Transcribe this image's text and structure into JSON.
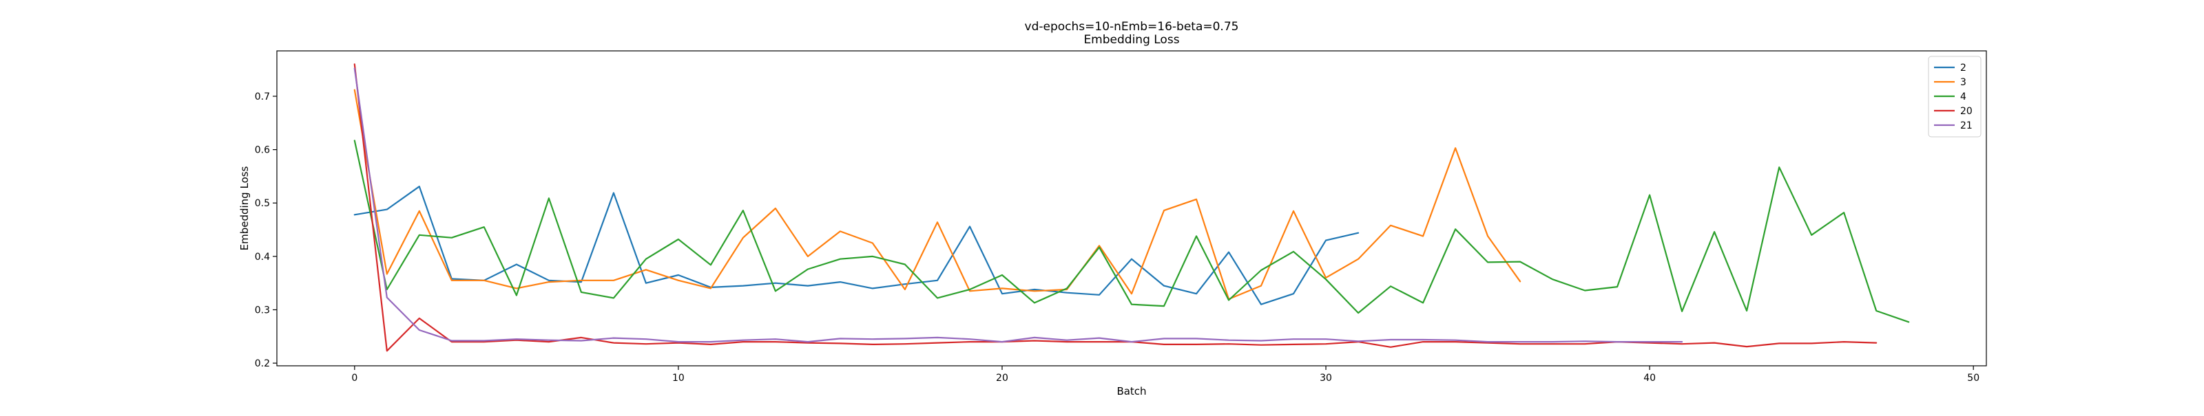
{
  "chart_data": {
    "type": "line",
    "title": "vd-epochs=10-nEmb=16-beta=0.75",
    "subtitle": "Embedding Loss",
    "xlabel": "Batch",
    "ylabel": "Embedding Loss",
    "xlim": [
      -2.4,
      50.4
    ],
    "ylim": [
      0.195,
      0.785
    ],
    "x_ticks": [
      0,
      10,
      20,
      30,
      40,
      50
    ],
    "y_ticks": [
      0.2,
      0.3,
      0.4,
      0.5,
      0.6,
      0.7
    ],
    "grid": false,
    "legend_position": "top-right",
    "series": [
      {
        "name": "2",
        "color": "#1f77b4",
        "values": [
          0.478,
          0.488,
          0.531,
          0.358,
          0.355,
          0.385,
          0.355,
          0.352,
          0.519,
          0.35,
          0.365,
          0.342,
          0.345,
          0.35,
          0.345,
          0.352,
          0.34,
          0.348,
          0.355,
          0.456,
          0.33,
          0.338,
          0.332,
          0.328,
          0.395,
          0.345,
          0.33,
          0.408,
          0.31,
          0.33,
          0.43,
          0.444
        ]
      },
      {
        "name": "3",
        "color": "#ff7f0e",
        "values": [
          0.712,
          0.367,
          0.485,
          0.355,
          0.355,
          0.34,
          0.352,
          0.355,
          0.355,
          0.375,
          0.355,
          0.34,
          0.435,
          0.49,
          0.4,
          0.447,
          0.425,
          0.338,
          0.464,
          0.335,
          0.34,
          0.335,
          0.338,
          0.42,
          0.33,
          0.486,
          0.507,
          0.32,
          0.345,
          0.485,
          0.36,
          0.395,
          0.458,
          0.438,
          0.603,
          0.438,
          0.353
        ]
      },
      {
        "name": "4",
        "color": "#2ca02c",
        "values": [
          0.617,
          0.338,
          0.44,
          0.435,
          0.455,
          0.327,
          0.509,
          0.333,
          0.322,
          0.395,
          0.432,
          0.384,
          0.486,
          0.335,
          0.376,
          0.395,
          0.4,
          0.385,
          0.322,
          0.338,
          0.365,
          0.313,
          0.34,
          0.417,
          0.31,
          0.307,
          0.438,
          0.318,
          0.374,
          0.409,
          0.357,
          0.294,
          0.344,
          0.313,
          0.451,
          0.389,
          0.39,
          0.357,
          0.336,
          0.343,
          0.515,
          0.297,
          0.446,
          0.298,
          0.567,
          0.44,
          0.482,
          0.298,
          0.277
        ]
      },
      {
        "name": "20",
        "color": "#d62728",
        "values": [
          0.76,
          0.223,
          0.284,
          0.24,
          0.24,
          0.243,
          0.24,
          0.248,
          0.238,
          0.236,
          0.238,
          0.235,
          0.24,
          0.24,
          0.238,
          0.237,
          0.235,
          0.236,
          0.238,
          0.24,
          0.24,
          0.242,
          0.24,
          0.24,
          0.24,
          0.235,
          0.235,
          0.236,
          0.234,
          0.235,
          0.236,
          0.24,
          0.23,
          0.24,
          0.24,
          0.238,
          0.236,
          0.236,
          0.236,
          0.24,
          0.238,
          0.236,
          0.238,
          0.231,
          0.237,
          0.237,
          0.24,
          0.238
        ]
      },
      {
        "name": "21",
        "color": "#9467bd",
        "values": [
          0.752,
          0.323,
          0.262,
          0.242,
          0.242,
          0.245,
          0.243,
          0.242,
          0.247,
          0.245,
          0.24,
          0.24,
          0.243,
          0.245,
          0.24,
          0.246,
          0.245,
          0.246,
          0.248,
          0.245,
          0.24,
          0.248,
          0.243,
          0.247,
          0.24,
          0.246,
          0.246,
          0.243,
          0.242,
          0.245,
          0.245,
          0.241,
          0.244,
          0.244,
          0.243,
          0.24,
          0.24,
          0.24,
          0.241,
          0.24,
          0.24,
          0.24
        ]
      }
    ]
  }
}
